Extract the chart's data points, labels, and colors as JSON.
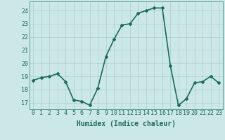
{
  "x": [
    0,
    1,
    2,
    3,
    4,
    5,
    6,
    7,
    8,
    9,
    10,
    11,
    12,
    13,
    14,
    15,
    16,
    17,
    18,
    19,
    20,
    21,
    22,
    23
  ],
  "y": [
    18.7,
    18.9,
    19.0,
    19.2,
    18.6,
    17.2,
    17.1,
    16.8,
    18.1,
    20.5,
    21.8,
    22.9,
    23.0,
    23.8,
    24.0,
    24.2,
    24.2,
    19.8,
    16.8,
    17.3,
    18.5,
    18.6,
    19.0,
    18.5
  ],
  "line_color": "#1a6b5a",
  "marker": "D",
  "marker_size": 2,
  "bg_color": "#cce8e6",
  "grid_color": "#aacfcc",
  "xlabel": "Humidex (Indice chaleur)",
  "xlabel_fontsize": 7,
  "ylim": [
    16.5,
    24.7
  ],
  "xlim": [
    -0.5,
    23.5
  ],
  "yticks": [
    17,
    18,
    19,
    20,
    21,
    22,
    23,
    24
  ],
  "xticks": [
    0,
    1,
    2,
    3,
    4,
    5,
    6,
    7,
    8,
    9,
    10,
    11,
    12,
    13,
    14,
    15,
    16,
    17,
    18,
    19,
    20,
    21,
    22,
    23
  ],
  "tick_fontsize": 6,
  "linewidth": 1.2
}
